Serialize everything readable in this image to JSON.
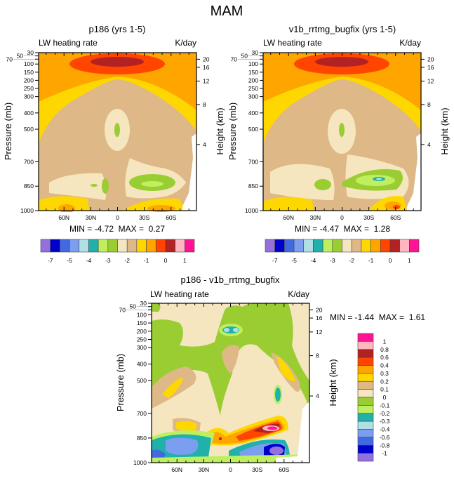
{
  "figure_title": "MAM",
  "chart_data": [
    {
      "type": "contour",
      "title": "p186 (yrs 1-5)",
      "left_string": "LW heating rate",
      "right_string": "K/day",
      "ylabel": "Pressure (mb)",
      "ylabel_right": "Height (km)",
      "stats": "MIN = -4.72  MAX =  0.27",
      "pressure_ticks": [
        30,
        50,
        70,
        100,
        150,
        200,
        250,
        300,
        400,
        500,
        700,
        850,
        1000
      ],
      "height_ticks": [
        20,
        16,
        12,
        8,
        4
      ],
      "lat_ticks": [
        "60N",
        "30N",
        "0",
        "30S",
        "60S"
      ],
      "lat_tick_values": [
        60,
        30,
        0,
        -30,
        -60
      ],
      "ylim": [
        1000,
        30
      ],
      "min": -4.72,
      "max": 0.27
    },
    {
      "type": "contour",
      "title": "v1b_rrtmg_bugfix (yrs 1-5)",
      "left_string": "LW heating rate",
      "right_string": "K/day",
      "ylabel": "Pressure (mb)",
      "ylabel_right": "Height (km)",
      "stats": "MIN = -4.47  MAX =  1.28",
      "pressure_ticks": [
        30,
        50,
        70,
        100,
        150,
        200,
        250,
        300,
        400,
        500,
        700,
        850,
        1000
      ],
      "height_ticks": [
        20,
        16,
        12,
        8,
        4
      ],
      "lat_ticks": [
        "60N",
        "30N",
        "0",
        "30S",
        "60S"
      ],
      "lat_tick_values": [
        60,
        30,
        0,
        -30,
        -60
      ],
      "ylim": [
        1000,
        30
      ],
      "min": -4.47,
      "max": 1.28
    },
    {
      "type": "contour",
      "title": "p186 - v1b_rrtmg_bugfix",
      "left_string": "LW heating rate",
      "right_string": "K/day",
      "ylabel": "Pressure (mb)",
      "ylabel_right": "Height (km)",
      "stats": "MIN = -1.44  MAX =  1.61",
      "pressure_ticks": [
        30,
        50,
        70,
        100,
        150,
        200,
        250,
        300,
        400,
        500,
        700,
        850,
        1000
      ],
      "height_ticks": [
        20,
        16,
        12,
        8,
        4
      ],
      "lat_ticks": [
        "60N",
        "30N",
        "0",
        "30S",
        "60S"
      ],
      "lat_tick_values": [
        60,
        30,
        0,
        -30,
        -60
      ],
      "ylim": [
        1000,
        30
      ],
      "min": -1.44,
      "max": 1.61
    }
  ],
  "colorbar_top": {
    "colors": [
      "#9370DB",
      "#0000CD",
      "#4169E1",
      "#7B9EF0",
      "#B0E0E6",
      "#20B2AA",
      "#BFEF5F",
      "#9ACD32",
      "#F5E6C0",
      "#DEB887",
      "#FFD700",
      "#FFA500",
      "#FF4500",
      "#B22222",
      "#FFB6C1",
      "#FF1493"
    ],
    "labels": [
      "-7",
      "-5",
      "-4",
      "-3",
      "-2",
      "-1",
      "0",
      "1"
    ]
  },
  "colorbar_diff": {
    "colors": [
      "#FF1493",
      "#FFB6C1",
      "#B22222",
      "#FF4500",
      "#FFA500",
      "#FFD700",
      "#DEB887",
      "#F5E6C0",
      "#9ACD32",
      "#BFEF5F",
      "#20B2AA",
      "#B0E0E6",
      "#7B9EF0",
      "#4169E1",
      "#0000CD",
      "#9370DB"
    ],
    "labels": [
      "1",
      "0.8",
      "0.6",
      "0.4",
      "0.3",
      "0.2",
      "0.1",
      "0",
      "-0.1",
      "-0.2",
      "-0.3",
      "-0.4",
      "-0.6",
      "-0.8",
      "-1"
    ]
  }
}
